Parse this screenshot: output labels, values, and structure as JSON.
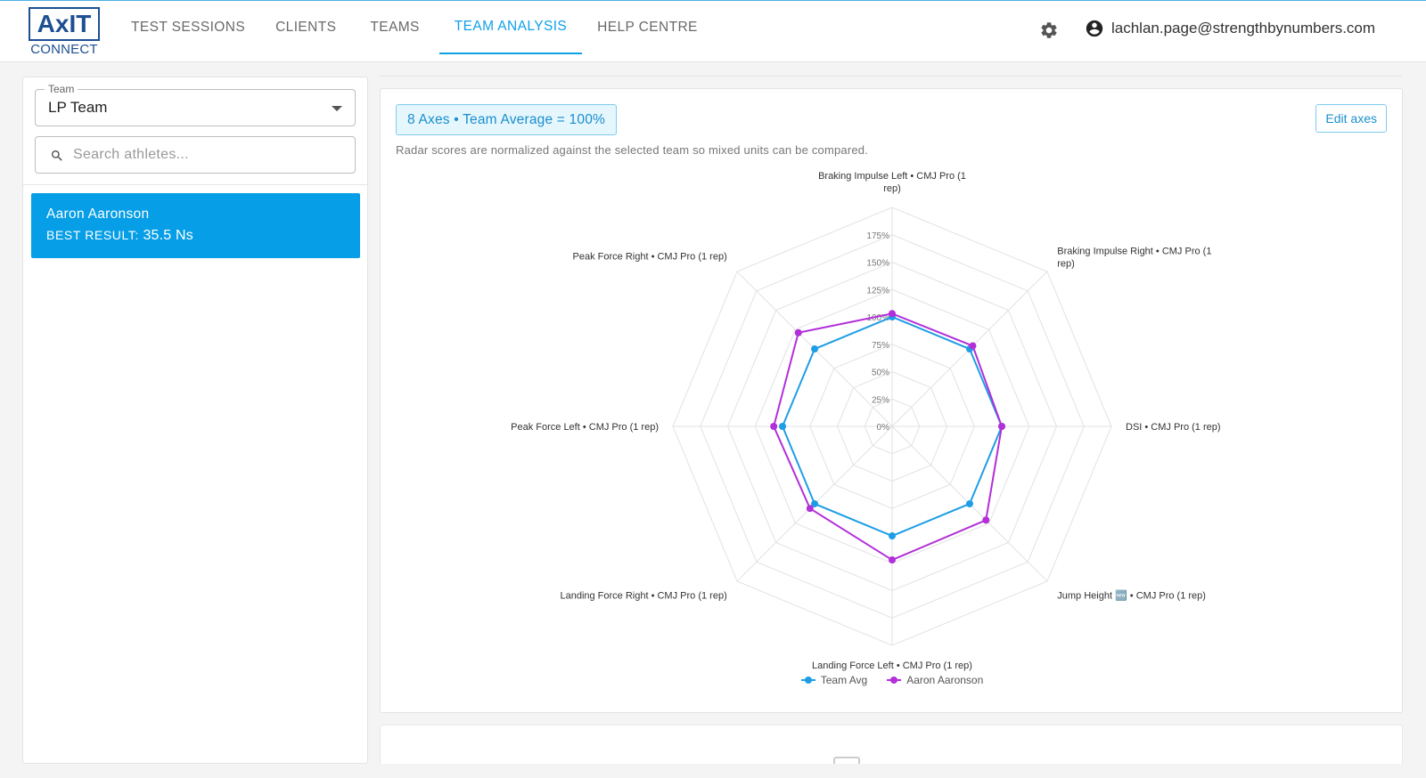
{
  "logo": {
    "main": "AxIT",
    "sub": "CONNECT"
  },
  "nav": {
    "items": [
      {
        "label": "TEST SESSIONS",
        "active": false
      },
      {
        "label": "CLIENTS",
        "active": false
      },
      {
        "label": "TEAMS",
        "active": false
      },
      {
        "label": "TEAM ANALYSIS",
        "active": true
      },
      {
        "label": "HELP CENTRE",
        "active": false
      }
    ]
  },
  "header": {
    "user_email": "lachlan.page@strengthbynumbers.com",
    "settings_icon": "gear-icon",
    "user_icon": "account-circle-icon"
  },
  "sidebar": {
    "team_label": "Team",
    "team_value": "LP Team",
    "search_placeholder": "Search athletes...",
    "athletes": [
      {
        "name": "Aaron Aaronson",
        "best_label": "BEST RESULT:",
        "best_value": "35.5 Ns"
      }
    ]
  },
  "main": {
    "axes_chip": "8 Axes • Team Average = 100%",
    "note": "Radar scores are normalized against the selected team so mixed units can be compared.",
    "edit_axes_label": "Edit axes"
  },
  "colors": {
    "accent": "#069ee6",
    "team_avg": "#1e9de6",
    "athlete": "#b22fd9"
  },
  "chart_data": {
    "type": "radar",
    "axes": [
      "Braking Impulse Left • CMJ Pro (1 rep)",
      "Braking Impulse Right • CMJ Pro (1 rep)",
      "DSI • CMJ Pro (1 rep)",
      "Jump Height 🆕 • CMJ Pro (1 rep)",
      "Landing Force Left • CMJ Pro (1 rep)",
      "Landing Force Right • CMJ Pro (1 rep)",
      "Peak Force Left • CMJ Pro (1 rep)",
      "Peak Force Right • CMJ Pro (1 rep)"
    ],
    "ticks": [
      "0%",
      "25%",
      "50%",
      "75%",
      "100%",
      "125%",
      "150%",
      "175%"
    ],
    "rmax": 200,
    "series": [
      {
        "name": "Team Avg",
        "color": "#1e9de6",
        "values": [
          100,
          100,
          100,
          100,
          100,
          100,
          100,
          100
        ]
      },
      {
        "name": "Aaron Aaronson",
        "color": "#b22fd9",
        "values": [
          103,
          104,
          100,
          121,
          122,
          106,
          108,
          121
        ]
      }
    ]
  }
}
